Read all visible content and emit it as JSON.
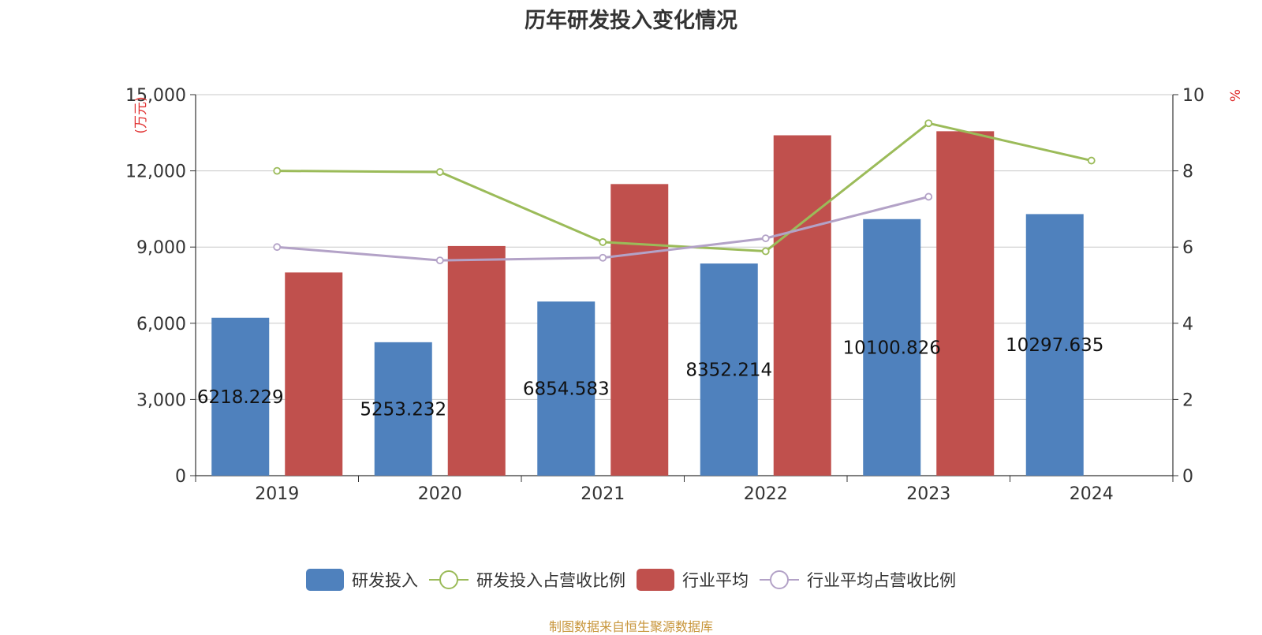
{
  "title": "历年研发投入变化情况",
  "source_note": "制图数据来自恒生聚源数据库",
  "colors": {
    "rd": "#4f81bd",
    "industry": "#c0504d",
    "rd_ratio": "#9bbb59",
    "industry_ratio": "#b3a2c7"
  },
  "chart_data": {
    "type": "bar",
    "title": "历年研发投入变化情况",
    "categories": [
      "2019",
      "2020",
      "2021",
      "2022",
      "2023",
      "2024"
    ],
    "y_left": {
      "label": "(万元)",
      "ylim": [
        0,
        15000
      ],
      "ticks": [
        "0",
        "3,000",
        "6,000",
        "9,000",
        "12,000",
        "15,000"
      ],
      "tick_values": [
        0,
        3000,
        6000,
        9000,
        12000,
        15000
      ]
    },
    "y_right": {
      "label": "%",
      "ylim": [
        0,
        10
      ],
      "ticks": [
        "0",
        "2",
        "4",
        "6",
        "8",
        "10"
      ],
      "tick_values": [
        0,
        2,
        4,
        6,
        8,
        10
      ]
    },
    "grid": true,
    "legend_position": "bottom",
    "series": [
      {
        "name": "研发投入",
        "type": "bar",
        "axis": "left",
        "values": [
          6218.229,
          5253.232,
          6854.583,
          8352.214,
          10100.826,
          10297.635
        ],
        "labels": [
          "6218.229",
          "5253.232",
          "6854.583",
          "8352.214",
          "10100.826",
          "10297.635"
        ]
      },
      {
        "name": "研发投入占营收比例",
        "type": "line",
        "axis": "right",
        "values": [
          8.0,
          7.97,
          6.13,
          5.89,
          9.25,
          8.27
        ]
      },
      {
        "name": "行业平均",
        "type": "bar",
        "axis": "left",
        "values": [
          8000,
          9040,
          11480,
          13400,
          13560,
          null
        ]
      },
      {
        "name": "行业平均占营收比例",
        "type": "line",
        "axis": "right",
        "values": [
          6.0,
          5.65,
          5.72,
          6.23,
          7.32,
          null
        ]
      }
    ]
  }
}
